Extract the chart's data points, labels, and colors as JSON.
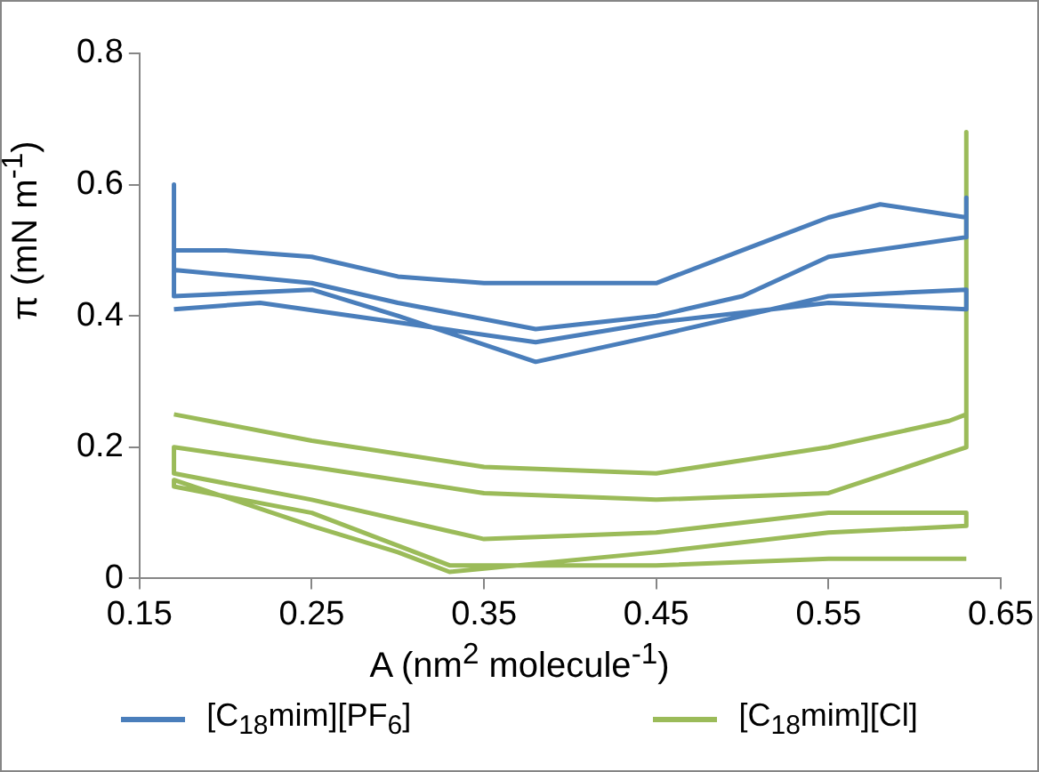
{
  "chart_data": {
    "type": "line",
    "xlabel": "A (nm$^{2}$ molecule$^{-1}$)",
    "ylabel": "π (mN m$^{-1}$)",
    "xlim": [
      0.15,
      0.65
    ],
    "xticks": [
      {
        "value": 0.15,
        "label": "0.15"
      },
      {
        "value": 0.25,
        "label": "0.25"
      },
      {
        "value": 0.35,
        "label": "0.35"
      },
      {
        "value": 0.45,
        "label": "0.45"
      },
      {
        "value": 0.55,
        "label": "0.55"
      },
      {
        "value": 0.65,
        "label": "0.65"
      }
    ],
    "ylim": [
      0,
      0.8
    ],
    "yticks": [
      0,
      0.2,
      0.4,
      0.6,
      0.8
    ],
    "grid": false,
    "legend": "bottom",
    "marker": "none",
    "line_style": "solid",
    "series": [
      {
        "name": "[C$_{18}$mim][PF$_{6}$]",
        "color": "#4a7ebb",
        "x": [
          0.17,
          0.17,
          0.17,
          0.2,
          0.25,
          0.3,
          0.35,
          0.45,
          0.5,
          0.55,
          0.58,
          0.63,
          0.63,
          0.63,
          0.55,
          0.5,
          0.45,
          0.38,
          0.3,
          0.25,
          0.17,
          0.17,
          0.25,
          0.3,
          0.38,
          0.45,
          0.5,
          0.55,
          0.63,
          0.63,
          0.55,
          0.45,
          0.38,
          0.3,
          0.22,
          0.17
        ],
        "values": [
          0.45,
          0.6,
          0.5,
          0.5,
          0.49,
          0.46,
          0.45,
          0.45,
          0.5,
          0.55,
          0.57,
          0.55,
          0.58,
          0.52,
          0.49,
          0.43,
          0.4,
          0.38,
          0.42,
          0.45,
          0.47,
          0.43,
          0.44,
          0.4,
          0.33,
          0.37,
          0.4,
          0.43,
          0.44,
          0.41,
          0.42,
          0.39,
          0.36,
          0.39,
          0.42,
          0.41
        ]
      },
      {
        "name": "[C$_{18}$mim][Cl]",
        "color": "#9bbb59",
        "x": [
          0.17,
          0.25,
          0.35,
          0.45,
          0.55,
          0.62,
          0.63,
          0.63,
          0.63,
          0.55,
          0.45,
          0.35,
          0.25,
          0.17,
          0.17,
          0.25,
          0.35,
          0.45,
          0.55,
          0.63,
          0.63,
          0.55,
          0.45,
          0.33,
          0.3,
          0.25,
          0.17,
          0.17,
          0.25,
          0.33,
          0.45,
          0.55,
          0.63
        ],
        "values": [
          0.25,
          0.21,
          0.17,
          0.16,
          0.2,
          0.24,
          0.25,
          0.68,
          0.2,
          0.13,
          0.12,
          0.13,
          0.17,
          0.2,
          0.16,
          0.12,
          0.06,
          0.07,
          0.1,
          0.1,
          0.08,
          0.07,
          0.04,
          0.01,
          0.04,
          0.08,
          0.15,
          0.14,
          0.1,
          0.02,
          0.02,
          0.03,
          0.03
        ]
      }
    ]
  }
}
